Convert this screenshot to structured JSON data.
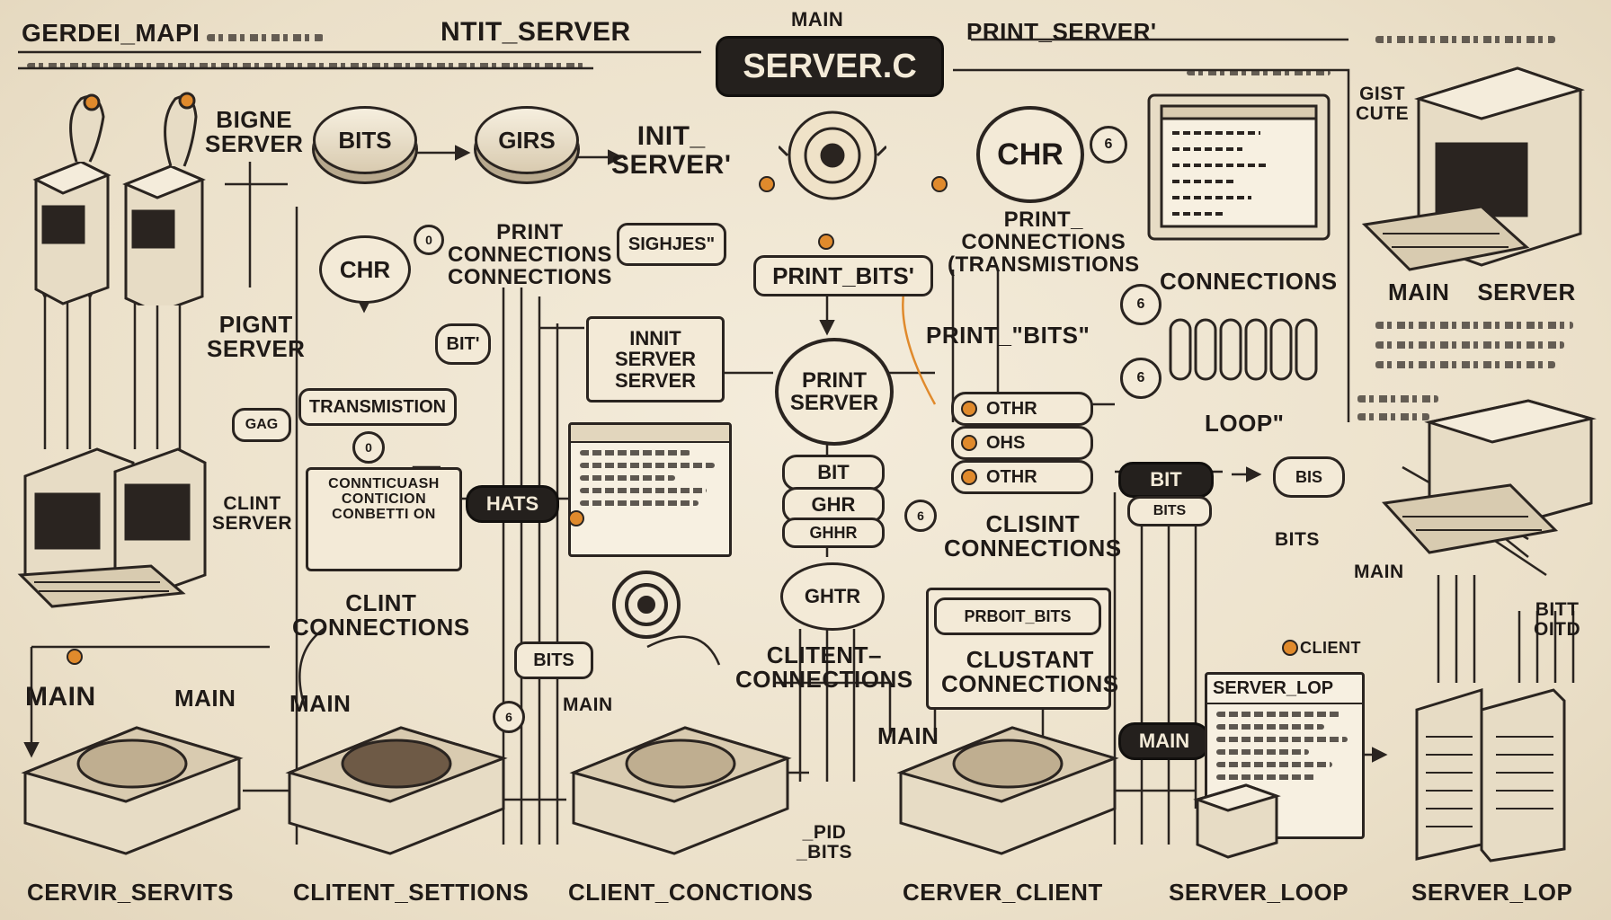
{
  "title": "SERVER.C",
  "labels": {
    "main_top": "MAIN",
    "top_left": "GERDEI_MAPI",
    "top_center": "NTIT_SERVER",
    "top_right": "PRINT_SERVER'",
    "bigne_server": "BIGNE\nSERVER",
    "pignt_server": "PIGNT\nSERVER",
    "init_server_top": "INIT_\nSERVER'",
    "print_conn_left": "PRINT\nCONNECTIONS\nCONNECTIONS",
    "print_conn_right": "PRINT_\nCONNECTIONS\n(TRANSMISTIONS",
    "connections_right": "CONNECTIONS",
    "main_server_right": "MAIN    SERVER",
    "gist_cute": "GIST\nCUTE",
    "clint_server": "CLINT\nSERVER",
    "client_connections_left": "CLINT\nCONNECTIONS",
    "client_connections_center": "CLITENT–\nCONNECTIONS",
    "clisint_connections": "CLISINT\nCONNECTIONS",
    "clustant_connections": "CLUSTANT\nCONNECTIONS",
    "loop": "LOOP\"",
    "main_left": "MAIN",
    "main_a": "MAIN",
    "main_b": "MAIN",
    "main_c": "MAIN",
    "main_d": "MAIN",
    "pid_bits": "_PID\n_BITS",
    "bits_small": "BITS",
    "bitt": "BITT\nOITD",
    "client_small": "CLIENT",
    "bottom_1": "CERVIR_SERVITS",
    "bottom_2": "CLITENT_SETTIONS",
    "bottom_3": "CLIENT_CONCTIONS",
    "bottom_4": "CERVER_CLIENT",
    "bottom_5": "SERVER_LOOP",
    "bottom_6": "SERVER_LOP"
  },
  "nodes": {
    "bits": "BITS",
    "girs": "GIRS",
    "chr_left": "CHR",
    "chr_right": "CHR",
    "signes": "SIGHJES\"",
    "print_bits_center": "PRINT_BITS'",
    "print_bits_right": "PRINT_\"BITS\"",
    "init_server_box": "INNIT\nSERVER\nSERVER",
    "print_server": "PRINT\nSERVER",
    "transmistion": "TRANSMISTION",
    "bit_chip": "BIT'",
    "hats": "HATS",
    "bits_pill": "BITS",
    "bit_center": "BIT",
    "ghr_center": "GHR",
    "ghhr_center": "GHHR",
    "ghtr": "GHTR",
    "othr_1": "OTHR",
    "othr_2": "OHS",
    "othr_3": "OTHR",
    "bit_right": "BIT",
    "bits_right_small": "BITS",
    "bits_mid": "BITS",
    "print_bits_box": "PRBOIT_BITS",
    "main_pill": "MAIN",
    "server_lop": "SERVER_LOP",
    "conn_box_lines": "CONNTICUASH\nCONTICION\nCONBETTI ON"
  },
  "colors": {
    "ink": "#2a2420",
    "paper": "#efe6d3",
    "accent": "#e08a2c",
    "dark_pill": "#24201d"
  }
}
